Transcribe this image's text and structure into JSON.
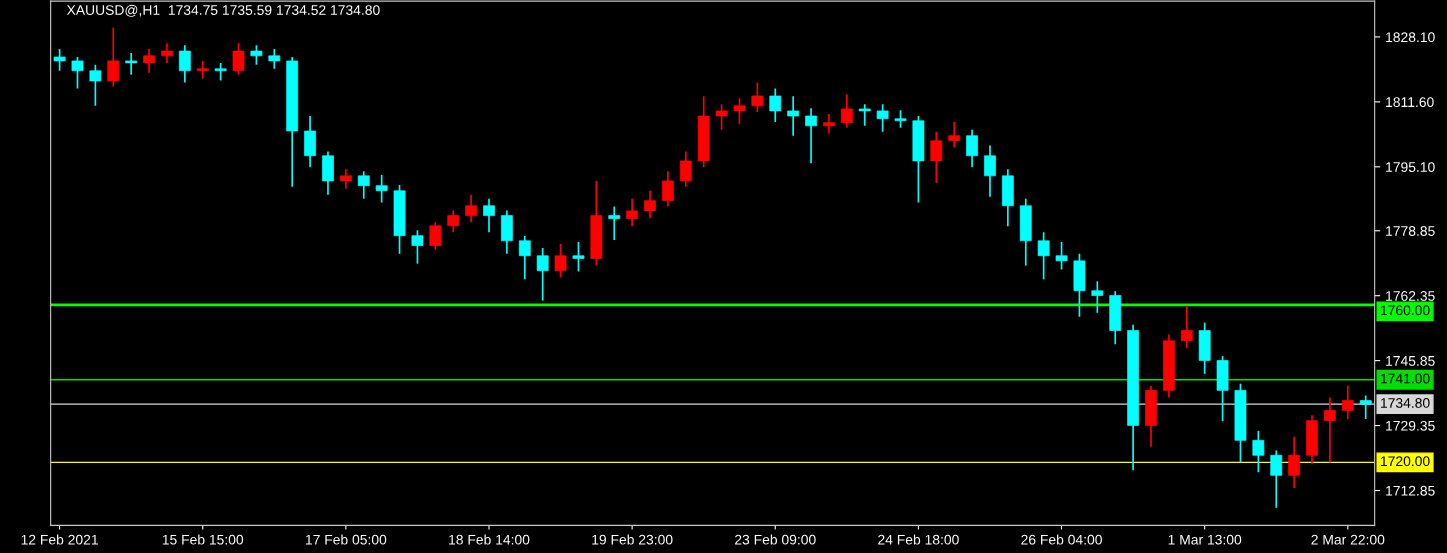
{
  "chart_data": {
    "type": "candlestick",
    "title": "XAUUSD@,H1  1734.75 1735.59 1734.52 1734.80",
    "categories": [
      "12 Feb 2021",
      null,
      null,
      null,
      null,
      null,
      null,
      null,
      "15 Feb 15:00",
      null,
      null,
      null,
      null,
      null,
      null,
      null,
      "17 Feb 05:00",
      null,
      null,
      null,
      null,
      null,
      null,
      null,
      "18 Feb 14:00",
      null,
      null,
      null,
      null,
      null,
      null,
      null,
      "19 Feb 23:00",
      null,
      null,
      null,
      null,
      null,
      null,
      null,
      "23 Feb 09:00",
      null,
      null,
      null,
      null,
      null,
      null,
      null,
      "24 Feb 18:00",
      null,
      null,
      null,
      null,
      null,
      null,
      null,
      "26 Feb 04:00",
      null,
      null,
      null,
      null,
      null,
      null,
      null,
      "1 Mar 13:00",
      null,
      null,
      null,
      null,
      null,
      null,
      null,
      "2 Mar 22:00",
      null
    ],
    "ohlc": [
      [
        1823.0,
        1825.0,
        1819.5,
        1822.0
      ],
      [
        1822.0,
        1823.0,
        1815.0,
        1819.5
      ],
      [
        1819.5,
        1821.0,
        1810.6,
        1816.9
      ],
      [
        1816.9,
        1830.4,
        1815.5,
        1822.0
      ],
      [
        1822.0,
        1824.0,
        1818.5,
        1821.5
      ],
      [
        1821.5,
        1825.0,
        1819.0,
        1823.3
      ],
      [
        1823.3,
        1826.5,
        1821.5,
        1824.5
      ],
      [
        1824.5,
        1826.0,
        1816.5,
        1819.5
      ],
      [
        1819.5,
        1822.0,
        1817.5,
        1820.0
      ],
      [
        1820.0,
        1821.5,
        1817.0,
        1819.5
      ],
      [
        1819.5,
        1826.5,
        1818.5,
        1824.5
      ],
      [
        1824.5,
        1826.0,
        1821.0,
        1823.3
      ],
      [
        1823.3,
        1825.0,
        1820.0,
        1822.0
      ],
      [
        1822.0,
        1823.0,
        1790.0,
        1804.2
      ],
      [
        1804.2,
        1808.0,
        1795.0,
        1797.9
      ],
      [
        1797.9,
        1799.0,
        1788.0,
        1791.5
      ],
      [
        1791.5,
        1794.5,
        1789.5,
        1792.8
      ],
      [
        1792.8,
        1794.0,
        1787.0,
        1790.3
      ],
      [
        1790.3,
        1793.0,
        1786.0,
        1789.0
      ],
      [
        1789.0,
        1790.5,
        1773.0,
        1777.6
      ],
      [
        1777.6,
        1779.0,
        1770.5,
        1775.1
      ],
      [
        1775.1,
        1781.0,
        1774.0,
        1780.1
      ],
      [
        1780.1,
        1784.0,
        1778.5,
        1782.7
      ],
      [
        1782.7,
        1788.0,
        1781.0,
        1785.2
      ],
      [
        1785.2,
        1787.0,
        1778.5,
        1782.7
      ],
      [
        1782.7,
        1784.0,
        1773.0,
        1776.3
      ],
      [
        1776.3,
        1777.5,
        1766.5,
        1772.5
      ],
      [
        1772.5,
        1774.5,
        1761.1,
        1768.7
      ],
      [
        1768.7,
        1775.5,
        1767.0,
        1772.5
      ],
      [
        1772.5,
        1776.0,
        1768.5,
        1771.8
      ],
      [
        1771.8,
        1791.5,
        1770.0,
        1782.7
      ],
      [
        1782.7,
        1785.0,
        1776.5,
        1781.9
      ],
      [
        1781.9,
        1787.0,
        1780.0,
        1783.9
      ],
      [
        1783.9,
        1789.0,
        1782.0,
        1786.5
      ],
      [
        1786.5,
        1794.0,
        1785.0,
        1791.5
      ],
      [
        1791.5,
        1799.0,
        1790.0,
        1796.6
      ],
      [
        1796.6,
        1813.0,
        1795.0,
        1808.0
      ],
      [
        1808.0,
        1811.0,
        1804.5,
        1809.3
      ],
      [
        1809.3,
        1812.5,
        1806.0,
        1810.6
      ],
      [
        1810.6,
        1816.5,
        1809.0,
        1813.1
      ],
      [
        1813.1,
        1815.0,
        1806.5,
        1809.3
      ],
      [
        1809.3,
        1813.0,
        1803.0,
        1808.0
      ],
      [
        1808.0,
        1810.0,
        1796.0,
        1805.5
      ],
      [
        1805.5,
        1808.5,
        1803.5,
        1806.3
      ],
      [
        1806.3,
        1813.5,
        1805.0,
        1809.8
      ],
      [
        1809.8,
        1811.0,
        1805.5,
        1809.3
      ],
      [
        1809.3,
        1811.0,
        1804.0,
        1807.3
      ],
      [
        1807.3,
        1809.5,
        1805.0,
        1806.8
      ],
      [
        1806.8,
        1808.0,
        1786.0,
        1796.6
      ],
      [
        1796.6,
        1804.0,
        1791.0,
        1801.7
      ],
      [
        1801.7,
        1806.5,
        1800.0,
        1803.0
      ],
      [
        1803.0,
        1804.5,
        1795.0,
        1797.9
      ],
      [
        1797.9,
        1800.5,
        1787.5,
        1792.8
      ],
      [
        1792.8,
        1794.5,
        1780.0,
        1785.2
      ],
      [
        1785.2,
        1787.0,
        1770.0,
        1776.3
      ],
      [
        1776.3,
        1778.5,
        1766.5,
        1772.5
      ],
      [
        1772.5,
        1776.0,
        1769.0,
        1771.2
      ],
      [
        1771.2,
        1773.0,
        1757.0,
        1763.6
      ],
      [
        1763.6,
        1766.0,
        1758.0,
        1762.4
      ],
      [
        1762.4,
        1763.5,
        1750.0,
        1753.5
      ],
      [
        1753.5,
        1755.0,
        1718.0,
        1729.4
      ],
      [
        1729.4,
        1739.5,
        1724.0,
        1738.3
      ],
      [
        1738.3,
        1752.5,
        1736.5,
        1750.9
      ],
      [
        1750.9,
        1759.8,
        1749.0,
        1753.5
      ],
      [
        1753.5,
        1755.5,
        1742.5,
        1745.9
      ],
      [
        1745.9,
        1747.0,
        1730.5,
        1738.3
      ],
      [
        1738.3,
        1740.0,
        1720.0,
        1725.6
      ],
      [
        1725.6,
        1728.0,
        1717.5,
        1721.8
      ],
      [
        1721.8,
        1723.0,
        1708.5,
        1716.7
      ],
      [
        1716.7,
        1726.5,
        1713.5,
        1721.8
      ],
      [
        1721.8,
        1732.0,
        1719.5,
        1730.6
      ],
      [
        1730.6,
        1736.5,
        1720.0,
        1733.2
      ],
      [
        1733.2,
        1739.5,
        1731.0,
        1735.7
      ],
      [
        1735.7,
        1737.0,
        1731.0,
        1734.8
      ]
    ],
    "colors": [
      "#00ffff",
      "#00ffff",
      "#00ffff",
      "#ff0000",
      "#00ffff",
      "#ff0000",
      "#ff0000",
      "#00ffff",
      "#ff0000",
      "#00ffff",
      "#ff0000",
      "#00ffff",
      "#00ffff",
      "#00ffff",
      "#00ffff",
      "#00ffff",
      "#ff0000",
      "#00ffff",
      "#00ffff",
      "#00ffff",
      "#00ffff",
      "#ff0000",
      "#ff0000",
      "#ff0000",
      "#00ffff",
      "#00ffff",
      "#00ffff",
      "#00ffff",
      "#ff0000",
      "#00ffff",
      "#ff0000",
      "#00ffff",
      "#ff0000",
      "#ff0000",
      "#ff0000",
      "#ff0000",
      "#ff0000",
      "#ff0000",
      "#ff0000",
      "#ff0000",
      "#00ffff",
      "#00ffff",
      "#00ffff",
      "#ff0000",
      "#ff0000",
      "#00ffff",
      "#00ffff",
      "#00ffff",
      "#00ffff",
      "#ff0000",
      "#ff0000",
      "#00ffff",
      "#00ffff",
      "#00ffff",
      "#00ffff",
      "#00ffff",
      "#00ffff",
      "#00ffff",
      "#00ffff",
      "#00ffff",
      "#00ffff",
      "#ff0000",
      "#ff0000",
      "#ff0000",
      "#00ffff",
      "#00ffff",
      "#00ffff",
      "#00ffff",
      "#00ffff",
      "#ff0000",
      "#ff0000",
      "#ff0000",
      "#ff0000",
      "#00ffff"
    ],
    "ylim": [
      1704.0,
      1837.2
    ],
    "yticks": [
      {
        "value": 1712.85,
        "label": "1712.85"
      },
      {
        "value": 1729.35,
        "label": "1729.35"
      },
      {
        "value": 1745.85,
        "label": "1745.85"
      },
      {
        "value": 1762.35,
        "label": "1762.35"
      },
      {
        "value": 1778.85,
        "label": "1778.85"
      },
      {
        "value": 1795.1,
        "label": "1795.10"
      },
      {
        "value": 1811.6,
        "label": "1811.60"
      },
      {
        "value": 1828.1,
        "label": "1828.10"
      }
    ],
    "ref_lines": [
      {
        "axis": "y",
        "value": 1760.0,
        "label": "1760.00",
        "color": "#00ff00"
      },
      {
        "axis": "y",
        "value": 1741.0,
        "label": "1741.00",
        "color": "#00dd00"
      },
      {
        "axis": "y",
        "value": 1734.8,
        "label": "1734.80",
        "color": "#d8d8d8"
      },
      {
        "axis": "y",
        "value": 1720.0,
        "label": "1720.00",
        "color": "#ffff00"
      }
    ],
    "grid": false
  }
}
